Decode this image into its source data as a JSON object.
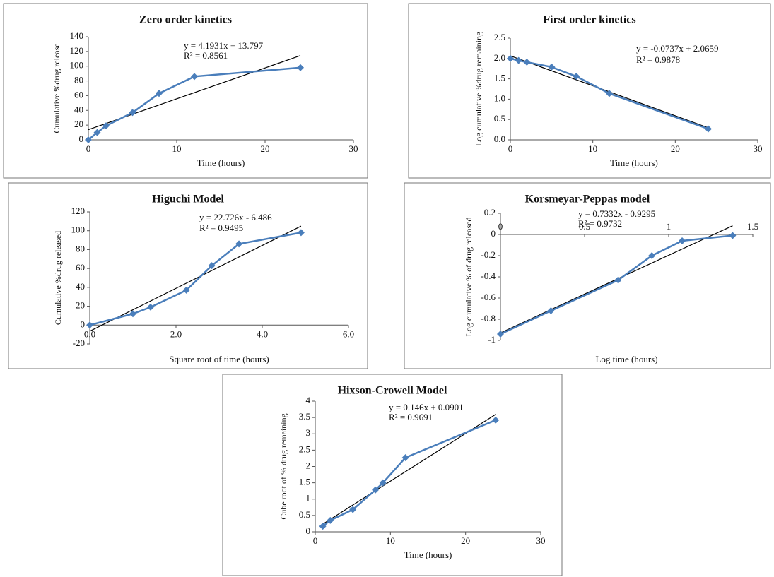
{
  "chart_data": [
    {
      "type": "line",
      "title": "Zero order kinetics",
      "x_label": "Time (hours)",
      "y_label": "Cumulative %drug release",
      "equation": "y = 4.1931x + 13.797",
      "r_squared": "R² = 0.8561",
      "x": [
        0,
        1,
        2,
        5,
        8,
        12,
        24
      ],
      "series": [
        {
          "color": "#4a7ebb",
          "values": [
            0,
            10,
            19,
            37,
            63,
            86,
            98
          ]
        }
      ],
      "trendline": {
        "slope": 4.1931,
        "intercept": 13.797,
        "x": [
          0,
          24
        ],
        "color": "#000000"
      },
      "xlim": [
        0,
        30
      ],
      "xticks": [
        0,
        10,
        20,
        30
      ],
      "ylim": [
        0,
        140
      ],
      "yticks": [
        0,
        20,
        40,
        60,
        80,
        100,
        120,
        140
      ]
    },
    {
      "type": "line",
      "title": "First order kinetics",
      "x_label": "Time (hours)",
      "y_label": "Log cumulative %drug remaining",
      "equation": "y = -0.0737x + 2.0659",
      "r_squared": "R² = 0.9878",
      "x": [
        0,
        1,
        2,
        5,
        8,
        12,
        24
      ],
      "series": [
        {
          "color": "#4a7ebb",
          "values": [
            2.0,
            1.95,
            1.91,
            1.79,
            1.56,
            1.14,
            0.27
          ]
        }
      ],
      "trendline": {
        "slope": -0.0737,
        "intercept": 2.0659,
        "x": [
          0,
          24
        ],
        "color": "#000000"
      },
      "xlim": [
        0,
        30
      ],
      "xticks": [
        0,
        10,
        20,
        30
      ],
      "ylim": [
        0,
        2.5
      ],
      "yticks": [
        {
          "value": 0,
          "label": "0.0"
        },
        {
          "value": 0.5,
          "label": "0.5"
        },
        {
          "value": 1,
          "label": "1.0"
        },
        {
          "value": 1.5,
          "label": "1.5"
        },
        {
          "value": 2,
          "label": "2.0"
        },
        2.5
      ]
    },
    {
      "type": "line",
      "title": "Higuchi Model",
      "x_label": "Square root of time (hours)",
      "y_label": "Cumulative %drug released",
      "equation": "y = 22.726x - 6.486",
      "r_squared": "R² = 0.9495",
      "x": [
        0,
        1,
        1.41,
        2.24,
        2.83,
        3.46,
        4.9
      ],
      "series": [
        {
          "color": "#4a7ebb",
          "values": [
            0,
            12,
            19,
            37,
            63,
            86,
            98
          ]
        }
      ],
      "trendline": {
        "slope": 22.726,
        "intercept": -6.486,
        "x": [
          0,
          4.9
        ],
        "color": "#000000"
      },
      "xlim": [
        0,
        6
      ],
      "xticks": [
        {
          "value": 0,
          "label": "0.0"
        },
        {
          "value": 2,
          "label": "2.0"
        },
        {
          "value": 4,
          "label": "4.0"
        },
        {
          "value": 6,
          "label": "6.0"
        }
      ],
      "ylim": [
        -20,
        120
      ],
      "yticks": [
        -20,
        0,
        20,
        40,
        60,
        80,
        100,
        120
      ]
    },
    {
      "type": "line",
      "title": "Korsmeyar-Peppas model",
      "x_label": "Log time (hours)",
      "y_label": "Log  cumulative  % of drug released",
      "equation": "y = 0.7332x - 0.9295",
      "r_squared": "R² = 0.9732",
      "x": [
        0,
        0.3,
        0.7,
        0.9,
        1.08,
        1.38
      ],
      "series": [
        {
          "color": "#4a7ebb",
          "values": [
            -0.94,
            -0.72,
            -0.43,
            -0.2,
            -0.06,
            -0.01
          ]
        }
      ],
      "trendline": {
        "slope": 0.7332,
        "intercept": -0.9295,
        "x": [
          0,
          1.38
        ],
        "color": "#000000"
      },
      "xlim": [
        0,
        1.5
      ],
      "xticks": [
        0,
        0.5,
        1,
        1.5
      ],
      "x_tick_labels_side": "above",
      "ylim": [
        -1,
        0.2
      ],
      "yticks": [
        -1,
        -0.8,
        -0.6,
        -0.4,
        -0.2,
        0,
        0.2
      ]
    },
    {
      "type": "line",
      "title": "Hixson-Crowell Model",
      "x_label": "Time (hours)",
      "y_label": "Cube root of % drug  remaining",
      "equation": "y = 0.146x + 0.0901",
      "r_squared": "R² = 0.9691",
      "x": [
        1,
        2,
        5,
        8,
        9,
        12,
        24
      ],
      "series": [
        {
          "color": "#4a7ebb",
          "values": [
            0.17,
            0.35,
            0.68,
            1.28,
            1.5,
            2.27,
            3.42
          ]
        }
      ],
      "trendline": {
        "slope": 0.146,
        "intercept": 0.0901,
        "x": [
          1,
          24
        ],
        "color": "#000000"
      },
      "xlim": [
        0,
        30
      ],
      "xticks": [
        0,
        10,
        20,
        30
      ],
      "ylim": [
        0,
        4
      ],
      "yticks": [
        0,
        0.5,
        1,
        1.5,
        2,
        2.5,
        3,
        3.5,
        4
      ]
    }
  ]
}
